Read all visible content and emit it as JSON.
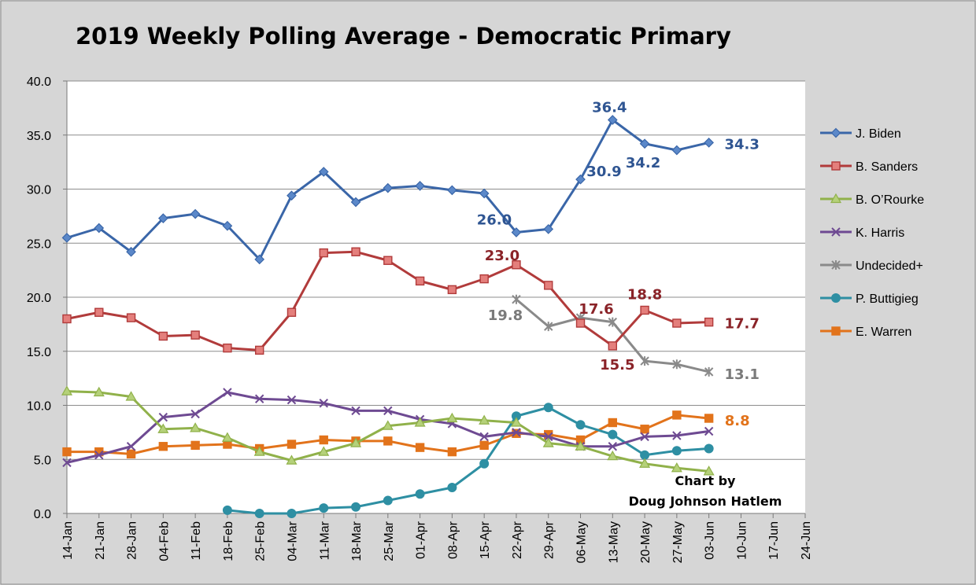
{
  "chart_data": {
    "type": "line",
    "title": "2019 Weekly Polling Average - Democratic Primary",
    "credit_line1": "Chart by",
    "credit_line2": "Doug Johnson Hatlem",
    "ylim": [
      0,
      40
    ],
    "yticks": [
      "0.0",
      "5.0",
      "10.0",
      "15.0",
      "20.0",
      "25.0",
      "30.0",
      "35.0",
      "40.0"
    ],
    "categories": [
      "14-Jan",
      "21-Jan",
      "28-Jan",
      "04-Feb",
      "11-Feb",
      "18-Feb",
      "25-Feb",
      "04-Mar",
      "11-Mar",
      "18-Mar",
      "25-Mar",
      "01-Apr",
      "08-Apr",
      "15-Apr",
      "22-Apr",
      "29-Apr",
      "06-May",
      "13-May",
      "20-May",
      "27-May",
      "03-Jun",
      "10-Jun",
      "17-Jun",
      "24-Jun"
    ],
    "grid": true,
    "legend_position": "right",
    "series": [
      {
        "name": "J. Biden",
        "color": "#3a66a8",
        "marker": "diamond",
        "values": [
          25.5,
          26.4,
          24.2,
          27.3,
          27.7,
          26.6,
          23.5,
          29.4,
          31.6,
          28.8,
          30.1,
          30.3,
          29.9,
          29.6,
          26.0,
          26.3,
          30.9,
          36.4,
          34.2,
          33.6,
          34.3,
          null,
          null,
          null
        ]
      },
      {
        "name": "B. Sanders",
        "color": "#b13b3b",
        "marker": "square",
        "values": [
          18.0,
          18.6,
          18.1,
          16.4,
          16.5,
          15.3,
          15.1,
          18.6,
          24.1,
          24.2,
          23.4,
          21.5,
          20.7,
          21.7,
          23.0,
          21.1,
          17.6,
          15.5,
          18.8,
          17.6,
          17.7,
          null,
          null,
          null
        ]
      },
      {
        "name": "B. O’Rourke",
        "color": "#90b14a",
        "marker": "triangle",
        "values": [
          11.3,
          11.2,
          10.8,
          7.8,
          7.9,
          7.0,
          5.7,
          4.9,
          5.7,
          6.5,
          8.1,
          8.4,
          8.8,
          8.6,
          8.4,
          6.5,
          6.2,
          5.3,
          4.6,
          4.2,
          3.9,
          null,
          null,
          null
        ]
      },
      {
        "name": "K. Harris",
        "color": "#6e4a92",
        "marker": "x",
        "values": [
          4.7,
          5.4,
          6.2,
          8.9,
          9.2,
          11.2,
          10.6,
          10.5,
          10.2,
          9.5,
          9.5,
          8.7,
          8.3,
          7.1,
          7.5,
          7.1,
          6.2,
          6.2,
          7.1,
          7.2,
          7.6,
          null,
          null,
          null
        ]
      },
      {
        "name": "Undecided+",
        "color": "#8a8a8a",
        "marker": "star",
        "values": [
          null,
          null,
          null,
          null,
          null,
          null,
          null,
          null,
          null,
          null,
          null,
          null,
          null,
          null,
          19.8,
          17.3,
          18.1,
          17.7,
          14.1,
          13.8,
          13.1,
          null,
          null,
          null
        ]
      },
      {
        "name": "P. Buttigieg",
        "color": "#2e8fa3",
        "marker": "circle",
        "values": [
          null,
          null,
          null,
          null,
          null,
          0.3,
          0.0,
          0.0,
          0.5,
          0.6,
          1.2,
          1.8,
          2.4,
          4.6,
          9.0,
          9.8,
          8.2,
          7.3,
          5.4,
          5.8,
          6.0,
          null,
          null,
          null
        ]
      },
      {
        "name": "E. Warren",
        "color": "#e2731b",
        "marker": "square",
        "values": [
          5.7,
          5.7,
          5.5,
          6.2,
          6.3,
          6.4,
          6.0,
          6.4,
          6.8,
          6.7,
          6.7,
          6.1,
          5.7,
          6.3,
          7.4,
          7.3,
          6.8,
          8.4,
          7.8,
          9.1,
          8.8,
          null,
          null,
          null
        ]
      }
    ],
    "data_labels": [
      {
        "series": "J. Biden",
        "category": "22-Apr",
        "text": "26.0",
        "color": "#2f5592"
      },
      {
        "series": "J. Biden",
        "category": "06-May",
        "text": "30.9",
        "color": "#2f5592"
      },
      {
        "series": "J. Biden",
        "category": "13-May",
        "text": "36.4",
        "color": "#2f5592"
      },
      {
        "series": "J. Biden",
        "category": "20-May",
        "text": "34.2",
        "color": "#2f5592"
      },
      {
        "series": "J. Biden",
        "category": "03-Jun",
        "text": "34.3",
        "color": "#2f5592"
      },
      {
        "series": "B. Sanders",
        "category": "22-Apr",
        "text": "23.0",
        "color": "#8a2328"
      },
      {
        "series": "B. Sanders",
        "category": "06-May",
        "text": "17.6",
        "color": "#8a2328"
      },
      {
        "series": "B. Sanders",
        "category": "13-May",
        "text": "15.5",
        "color": "#8a2328"
      },
      {
        "series": "B. Sanders",
        "category": "20-May",
        "text": "18.8",
        "color": "#8a2328"
      },
      {
        "series": "B. Sanders",
        "category": "03-Jun",
        "text": "17.7",
        "color": "#8a2328"
      },
      {
        "series": "Undecided+",
        "category": "22-Apr",
        "text": "19.8",
        "color": "#7a7a7a"
      },
      {
        "series": "Undecided+",
        "category": "03-Jun",
        "text": "13.1",
        "color": "#7a7a7a"
      },
      {
        "series": "E. Warren",
        "category": "03-Jun",
        "text": "8.8",
        "color": "#e2731b"
      }
    ]
  }
}
